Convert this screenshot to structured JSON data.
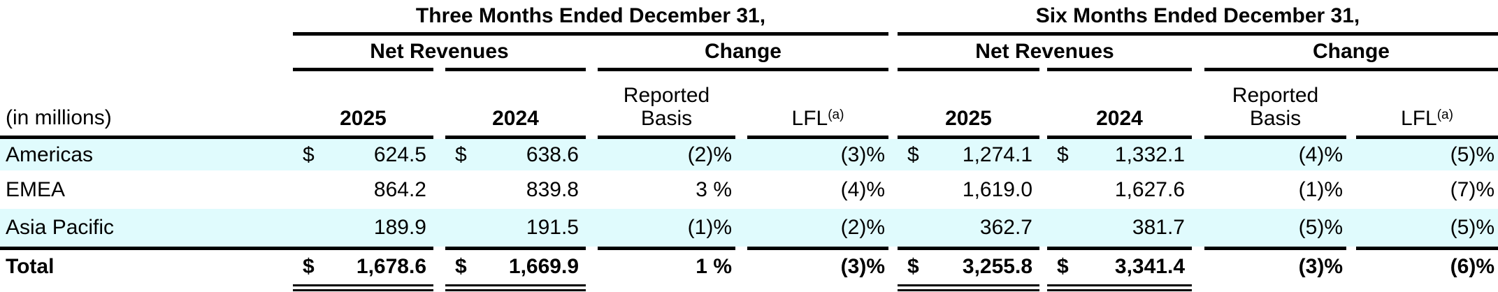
{
  "table": {
    "unit_label": "(in millions)",
    "colors": {
      "row_highlight": "#e0fbfd",
      "rule": "#000000",
      "text": "#000000"
    },
    "periods": {
      "three_months": "Three Months Ended December 31,",
      "six_months": "Six Months Ended December 31,"
    },
    "group_headers": {
      "net_revenues": "Net Revenues",
      "change": "Change"
    },
    "column_headers": {
      "year_2025": "2025",
      "year_2024": "2024",
      "reported_line1": "Reported",
      "reported_line2": "Basis",
      "lfl": "LFL",
      "lfl_footnote": "(a)"
    },
    "rows": [
      {
        "label": "Americas",
        "tm": {
          "cur_2025": "$",
          "v_2025": "624.5",
          "cur_2024": "$",
          "v_2024": "638.6",
          "reported": "(2)%",
          "lfl": "(3)%"
        },
        "sm": {
          "cur_2025": "$",
          "v_2025": "1,274.1",
          "cur_2024": "$",
          "v_2024": "1,332.1",
          "reported": "(4)%",
          "lfl": "(5)%"
        }
      },
      {
        "label": "EMEA",
        "tm": {
          "cur_2025": "",
          "v_2025": "864.2",
          "cur_2024": "",
          "v_2024": "839.8",
          "reported": "3 %",
          "lfl": "(4)%"
        },
        "sm": {
          "cur_2025": "",
          "v_2025": "1,619.0",
          "cur_2024": "",
          "v_2024": "1,627.6",
          "reported": "(1)%",
          "lfl": "(7)%"
        }
      },
      {
        "label": "Asia Pacific",
        "tm": {
          "cur_2025": "",
          "v_2025": "189.9",
          "cur_2024": "",
          "v_2024": "191.5",
          "reported": "(1)%",
          "lfl": "(2)%"
        },
        "sm": {
          "cur_2025": "",
          "v_2025": "362.7",
          "cur_2024": "",
          "v_2024": "381.7",
          "reported": "(5)%",
          "lfl": "(5)%"
        }
      }
    ],
    "total_row": {
      "label": "Total",
      "tm": {
        "cur_2025": "$",
        "v_2025": "1,678.6",
        "cur_2024": "$",
        "v_2024": "1,669.9",
        "reported": "1 %",
        "lfl": "(3)%"
      },
      "sm": {
        "cur_2025": "$",
        "v_2025": "3,255.8",
        "cur_2024": "$",
        "v_2024": "3,341.4",
        "reported": "(3)%",
        "lfl": "(6)%"
      }
    }
  }
}
